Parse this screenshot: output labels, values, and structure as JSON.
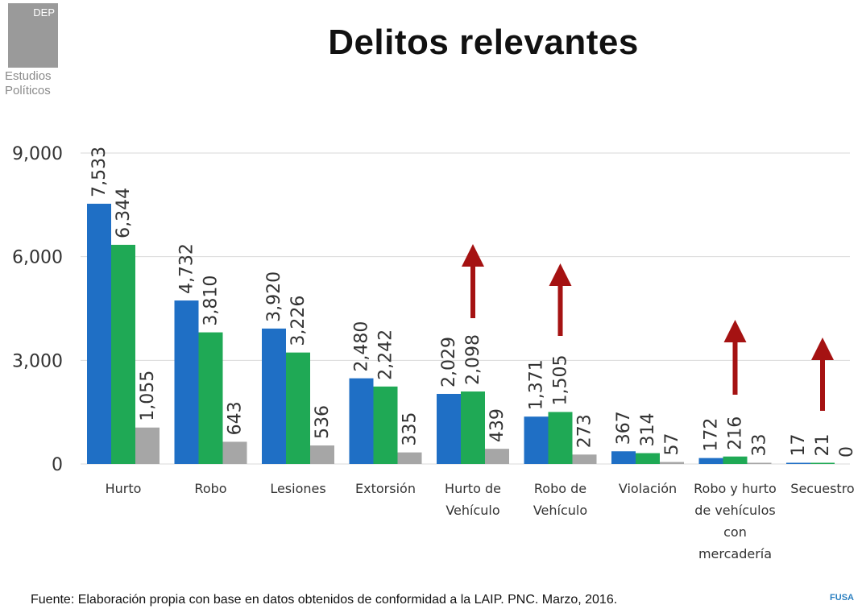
{
  "logo": {
    "lines": [
      "DEP",
      "Estudios",
      "Políticos"
    ]
  },
  "footer": {
    "source": "Fuente: Elaboración propia con base en datos obtenidos de conformidad a la LAIP. PNC. Marzo, 2016.",
    "badge": "FUSA"
  },
  "colors": {
    "series": [
      "#1f6fc5",
      "#1fa955",
      "#a6a6a6"
    ],
    "arrow": "#a51212",
    "grid": "#d9d9d9"
  },
  "chart_data": {
    "type": "bar",
    "title": "Delitos relevantes",
    "xlabel": "",
    "ylabel": "",
    "ylim": [
      0,
      9000
    ],
    "yticks": [
      0,
      3000,
      6000,
      9000
    ],
    "ytick_labels": [
      "0",
      "3,000",
      "6,000",
      "9,000"
    ],
    "grid": true,
    "legend": "none",
    "categories": [
      [
        "Hurto"
      ],
      [
        "Robo"
      ],
      [
        "Lesiones"
      ],
      [
        "Extorsión"
      ],
      [
        "Hurto de",
        "Vehículo"
      ],
      [
        "Robo de",
        "Vehículo"
      ],
      [
        "Violación"
      ],
      [
        "Robo y hurto",
        "de vehículos",
        "con",
        "mercadería"
      ],
      [
        "Secuestro"
      ]
    ],
    "series": [
      {
        "values": [
          7533,
          4732,
          3920,
          2480,
          2029,
          1371,
          367,
          172,
          17
        ],
        "labels": [
          "7,533",
          "4,732",
          "3,920",
          "2,480",
          "2,029",
          "1,371",
          "367",
          "172",
          "17"
        ]
      },
      {
        "values": [
          6344,
          3810,
          3226,
          2242,
          2098,
          1505,
          314,
          216,
          21
        ],
        "labels": [
          "6,344",
          "3,810",
          "3,226",
          "2,242",
          "2,098",
          "1,505",
          "314",
          "216",
          "21"
        ]
      },
      {
        "values": [
          1055,
          643,
          536,
          335,
          439,
          273,
          57,
          33,
          0
        ],
        "labels": [
          "1,055",
          "643",
          "536",
          "335",
          "439",
          "273",
          "57",
          "33",
          "0"
        ]
      }
    ],
    "annotations": {
      "up_arrows_at_categories": [
        4,
        5,
        7,
        8
      ]
    }
  }
}
